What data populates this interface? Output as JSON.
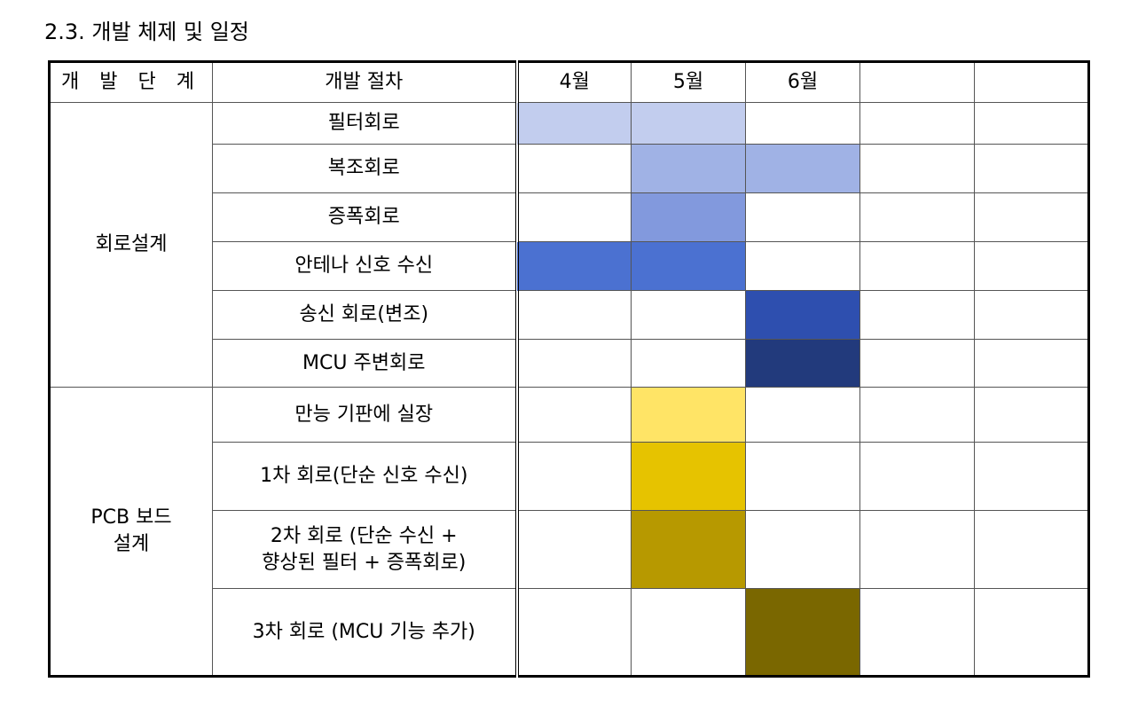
{
  "title": "2.3. 개발 체제 및 일정",
  "headers": {
    "stage": "개 발 단 계",
    "procedure": "개발 절차",
    "months": [
      "4월",
      "5월",
      "6월",
      "",
      ""
    ]
  },
  "colors": {
    "light_blue": "#c2cdee",
    "mid_blue": "#a0b2e5",
    "blue": "#8299dd",
    "strong_blue": "#4b71d1",
    "dark_blue": "#2e4faf",
    "navy": "#223a7c",
    "light_yellow": "#ffe466",
    "yellow": "#e6c300",
    "dark_yellow": "#b79900",
    "olive": "#7a6700"
  },
  "groups": [
    {
      "stage": "회로설계",
      "rows": [
        {
          "procedure": "필터회로",
          "fill": [
            "#c2cdee",
            "#c2cdee",
            "",
            "",
            ""
          ]
        },
        {
          "procedure": "복조회로",
          "fill": [
            "",
            "#a0b2e5",
            "#a0b2e5",
            "",
            ""
          ]
        },
        {
          "procedure": "증폭회로",
          "fill": [
            "",
            "#8299dd",
            "",
            "",
            ""
          ]
        },
        {
          "procedure": "안테나 신호 수신",
          "fill": [
            "#4b71d1",
            "#4b71d1",
            "",
            "",
            ""
          ]
        },
        {
          "procedure": "송신 회로(변조)",
          "fill": [
            "",
            "",
            "#2e4faf",
            "",
            ""
          ]
        },
        {
          "procedure": "MCU 주변회로",
          "fill": [
            "",
            "",
            "#223a7c",
            "",
            ""
          ]
        }
      ]
    },
    {
      "stage": "PCB 보드 설계",
      "stage_lines": [
        "PCB 보드",
        "설계"
      ],
      "rows": [
        {
          "procedure": "만능 기판에 실장",
          "fill": [
            "",
            "#ffe466",
            "",
            "",
            ""
          ]
        },
        {
          "procedure": "1차 회로(단순 신호 수신)",
          "fill": [
            "",
            "#e6c300",
            "",
            "",
            ""
          ]
        },
        {
          "procedure": "2차 회로 (단순 수신 + 향상된 필터 + 증폭회로)",
          "procedure_lines": [
            "2차 회로 (단순 수신 +",
            "향상된 필터 + 증폭회로)"
          ],
          "fill": [
            "",
            "#b79900",
            "",
            "",
            ""
          ]
        },
        {
          "procedure": "3차 회로 (MCU 기능 추가)",
          "fill": [
            "",
            "",
            "#7a6700",
            "",
            ""
          ]
        }
      ]
    }
  ]
}
